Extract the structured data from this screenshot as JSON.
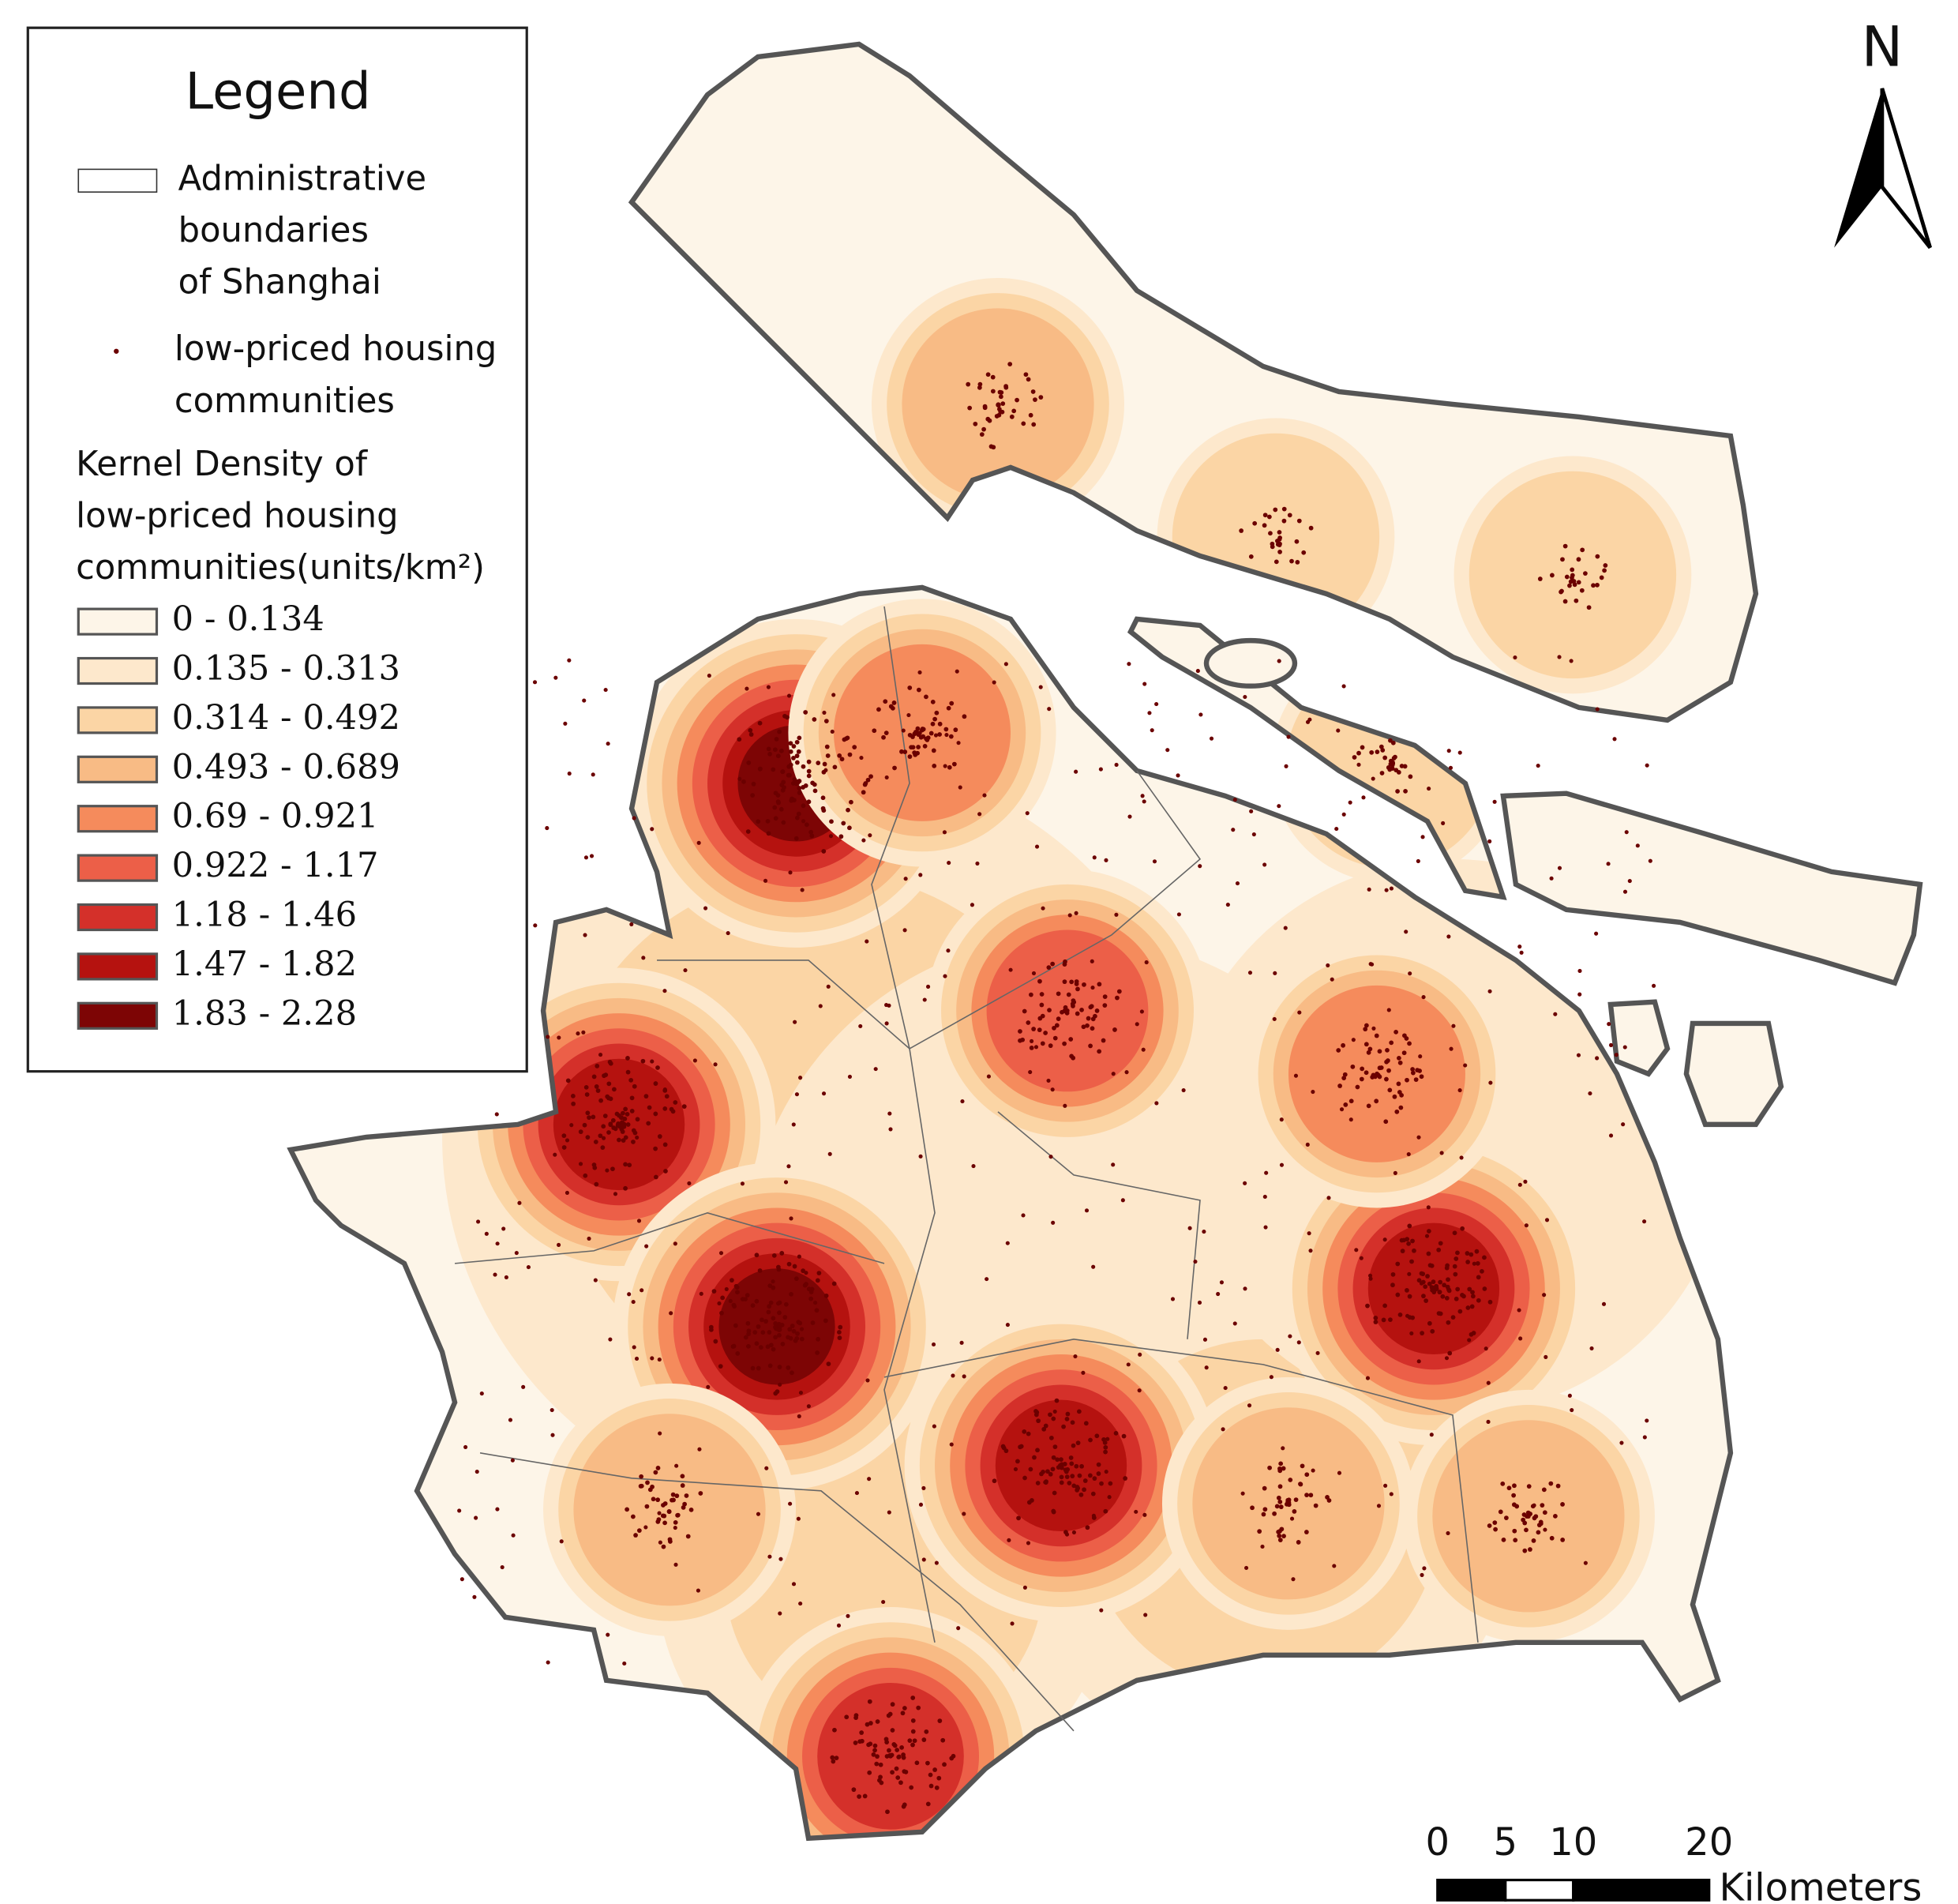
{
  "legend": {
    "title": "Legend",
    "boundary_label": [
      "Administrative",
      "boundaries",
      "of Shanghai"
    ],
    "housing_label": [
      "low-priced housing",
      "communities"
    ],
    "density_title": [
      "Kernel Density of",
      "low-priced housing",
      "communities(units/km²)"
    ],
    "classes": [
      {
        "label": "0 - 0.134",
        "color": "#fdf5e8"
      },
      {
        "label": "0.135 - 0.313",
        "color": "#fde8cc"
      },
      {
        "label": "0.314 - 0.492",
        "color": "#fbd5a5"
      },
      {
        "label": "0.493 - 0.689",
        "color": "#f8bb85"
      },
      {
        "label": "0.69 - 0.921",
        "color": "#f58b5c"
      },
      {
        "label": "0.922 - 1.17",
        "color": "#ec5f48"
      },
      {
        "label": "1.18 - 1.46",
        "color": "#d4302a"
      },
      {
        "label": "1.47 - 1.82",
        "color": "#b5120f"
      },
      {
        "label": "1.83 - 2.28",
        "color": "#7d0505"
      }
    ]
  },
  "north_arrow": "N",
  "scale_bar": {
    "ticks": [
      0,
      5,
      10,
      20
    ],
    "unit": "Kilometers"
  }
}
